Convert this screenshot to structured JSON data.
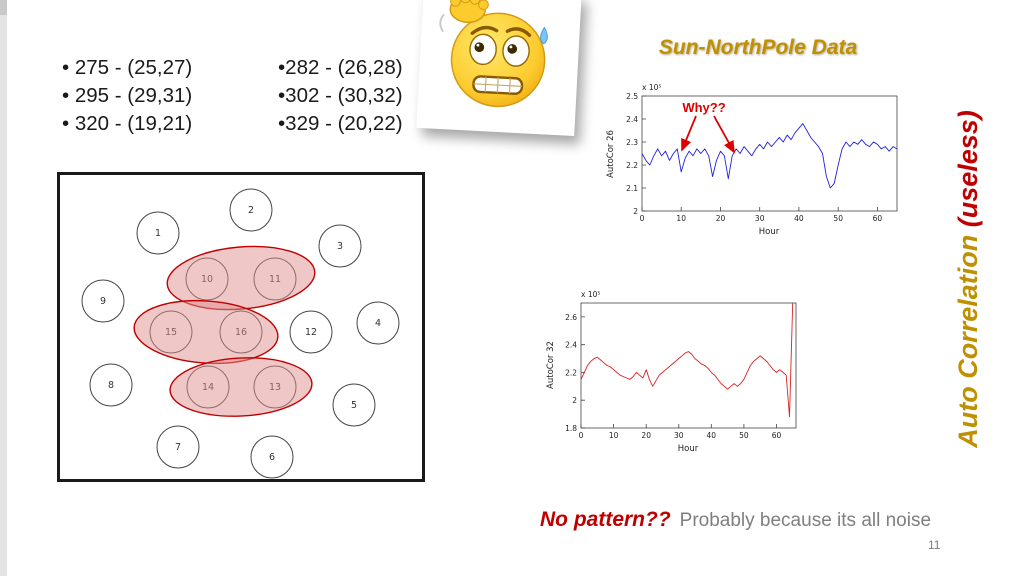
{
  "title": "Sun-NorthPole Data",
  "bullets": {
    "col1": [
      "• 275 - (25,27)",
      "• 295 - (29,31)",
      "• 320 - (19,21)"
    ],
    "col2": [
      "•282 - (26,28)",
      "•302 - (30,32)",
      "•329 - (20,22)"
    ]
  },
  "diagram": {
    "nodes": [
      "1",
      "2",
      "3",
      "4",
      "5",
      "6",
      "7",
      "8",
      "9",
      "10",
      "11",
      "12",
      "13",
      "14",
      "15",
      "16"
    ],
    "clusters": [
      "10-11",
      "15-16",
      "14-13"
    ]
  },
  "chart_data": [
    {
      "type": "line",
      "title": "",
      "ylabel": "AutoCor 26",
      "xlabel": "Hour",
      "exp_label": "x 10⁵",
      "annotation": "Why??",
      "series_color": "#2222dd",
      "legend": null,
      "grid": false,
      "xlim": [
        0,
        65
      ],
      "ylim": [
        2.0,
        2.5
      ],
      "ytick_labels": [
        "2.5",
        "2.4",
        "2.3",
        "2.2",
        "2.1",
        "2"
      ],
      "xtick_labels": [
        "0",
        "10",
        "20",
        "30",
        "40",
        "50",
        "60"
      ],
      "x_start": 0,
      "x_step": 1,
      "values": [
        2.25,
        2.22,
        2.2,
        2.24,
        2.27,
        2.24,
        2.26,
        2.22,
        2.25,
        2.27,
        2.17,
        2.23,
        2.26,
        2.24,
        2.27,
        2.25,
        2.27,
        2.24,
        2.15,
        2.22,
        2.26,
        2.24,
        2.14,
        2.24,
        2.27,
        2.25,
        2.28,
        2.26,
        2.24,
        2.27,
        2.29,
        2.27,
        2.3,
        2.28,
        2.3,
        2.32,
        2.3,
        2.33,
        2.31,
        2.34,
        2.36,
        2.38,
        2.35,
        2.32,
        2.3,
        2.28,
        2.25,
        2.15,
        2.1,
        2.12,
        2.2,
        2.27,
        2.3,
        2.28,
        2.3,
        2.29,
        2.31,
        2.29,
        2.28,
        2.3,
        2.29,
        2.27,
        2.28,
        2.26,
        2.28,
        2.27
      ]
    },
    {
      "type": "line",
      "title": "",
      "ylabel": "AutoCor 32",
      "xlabel": "Hour",
      "exp_label": "x 10⁵",
      "annotation": "",
      "series_color": "#dd2222",
      "legend": null,
      "grid": false,
      "xlim": [
        0,
        66
      ],
      "ylim": [
        1.8,
        2.7
      ],
      "ytick_labels": [
        "2.6",
        "2.4",
        "2.2",
        "2",
        "1.8"
      ],
      "xtick_labels": [
        "0",
        "10",
        "20",
        "30",
        "40",
        "50",
        "60"
      ],
      "x_start": 0,
      "x_step": 1,
      "values": [
        2.15,
        2.2,
        2.25,
        2.28,
        2.3,
        2.31,
        2.29,
        2.27,
        2.25,
        2.24,
        2.22,
        2.2,
        2.18,
        2.17,
        2.16,
        2.15,
        2.17,
        2.2,
        2.18,
        2.16,
        2.22,
        2.15,
        2.1,
        2.14,
        2.18,
        2.2,
        2.22,
        2.24,
        2.26,
        2.28,
        2.3,
        2.32,
        2.34,
        2.35,
        2.33,
        2.3,
        2.28,
        2.26,
        2.25,
        2.23,
        2.2,
        2.18,
        2.15,
        2.12,
        2.1,
        2.08,
        2.1,
        2.12,
        2.1,
        2.12,
        2.15,
        2.2,
        2.25,
        2.28,
        2.3,
        2.32,
        2.3,
        2.28,
        2.25,
        2.22,
        2.2,
        2.22,
        2.2,
        2.18,
        1.88,
        2.7
      ]
    }
  ],
  "vertical_label": {
    "gold": "Auto Correlation ",
    "red": "(useless)"
  },
  "footer": {
    "headline": "No pattern??",
    "body": "Probably because its all noise"
  },
  "page_number": "11",
  "colors": {
    "gold": "#BF9000",
    "red": "#C00000",
    "blue_series": "#2222dd",
    "red_series": "#dd2222"
  }
}
